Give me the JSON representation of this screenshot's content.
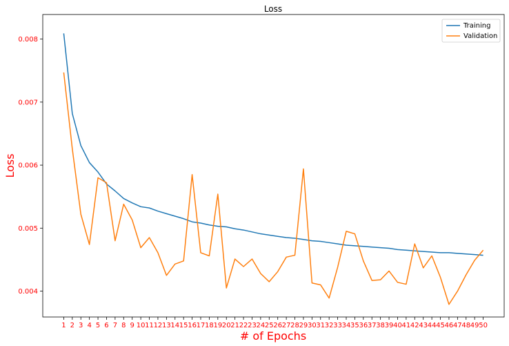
{
  "chart_data": {
    "type": "line",
    "title": "Loss",
    "xlabel": "# of Epochs",
    "ylabel": "Loss",
    "x": [
      1,
      2,
      3,
      4,
      5,
      6,
      7,
      8,
      9,
      10,
      11,
      12,
      13,
      14,
      15,
      16,
      17,
      18,
      19,
      20,
      21,
      22,
      23,
      24,
      25,
      26,
      27,
      28,
      29,
      30,
      31,
      32,
      33,
      34,
      35,
      36,
      37,
      38,
      39,
      40,
      41,
      42,
      43,
      44,
      45,
      46,
      47,
      48,
      49,
      50
    ],
    "x_tick_labels": [
      "1",
      "2",
      "3",
      "4",
      "5",
      "6",
      "7",
      "8",
      "9",
      "10",
      "11",
      "12",
      "13",
      "14",
      "15",
      "16",
      "17",
      "18",
      "19",
      "20",
      "21",
      "22",
      "23",
      "24",
      "25",
      "26",
      "27",
      "28",
      "29",
      "30",
      "31",
      "32",
      "33",
      "34",
      "35",
      "36",
      "37",
      "38",
      "39",
      "40",
      "41",
      "42",
      "43",
      "44",
      "45",
      "46",
      "47",
      "48",
      "49",
      "50"
    ],
    "xlim": [
      -1.45,
      52.45
    ],
    "ylim": [
      0.00359,
      0.00839
    ],
    "y_ticks": [
      0.004,
      0.005,
      0.006,
      0.007,
      0.008
    ],
    "y_tick_labels": [
      "0.004",
      "0.005",
      "0.006",
      "0.007",
      "0.008"
    ],
    "grid": false,
    "legend_position": "top-right",
    "tick_color": "#ff0000",
    "series": [
      {
        "name": "Training",
        "color": "#1f77b4",
        "values": [
          0.00809,
          0.00682,
          0.00631,
          0.00604,
          0.00589,
          0.0057,
          0.00559,
          0.00547,
          0.0054,
          0.00534,
          0.00532,
          0.00527,
          0.00523,
          0.00519,
          0.00515,
          0.0051,
          0.00508,
          0.00505,
          0.00503,
          0.00502,
          0.00499,
          0.00497,
          0.00494,
          0.00491,
          0.00489,
          0.00487,
          0.00485,
          0.00484,
          0.00482,
          0.0048,
          0.00479,
          0.00477,
          0.00475,
          0.00473,
          0.00472,
          0.00471,
          0.0047,
          0.00469,
          0.00468,
          0.00466,
          0.00465,
          0.00464,
          0.00463,
          0.00462,
          0.00461,
          0.00461,
          0.0046,
          0.00459,
          0.00458,
          0.00457
        ]
      },
      {
        "name": "Validation",
        "color": "#ff7f0e",
        "values": [
          0.00747,
          0.00626,
          0.00522,
          0.00474,
          0.0058,
          0.00572,
          0.0048,
          0.00538,
          0.00513,
          0.00469,
          0.00485,
          0.00461,
          0.00425,
          0.00443,
          0.00448,
          0.00585,
          0.00461,
          0.00456,
          0.00554,
          0.00405,
          0.00451,
          0.00439,
          0.00451,
          0.00428,
          0.00415,
          0.00431,
          0.00454,
          0.00457,
          0.00594,
          0.00413,
          0.0041,
          0.00389,
          0.00438,
          0.00495,
          0.00491,
          0.00448,
          0.00417,
          0.00418,
          0.00432,
          0.00414,
          0.00411,
          0.00475,
          0.00437,
          0.00456,
          0.00422,
          0.00379,
          0.004,
          0.00426,
          0.00449,
          0.00465
        ]
      }
    ]
  }
}
